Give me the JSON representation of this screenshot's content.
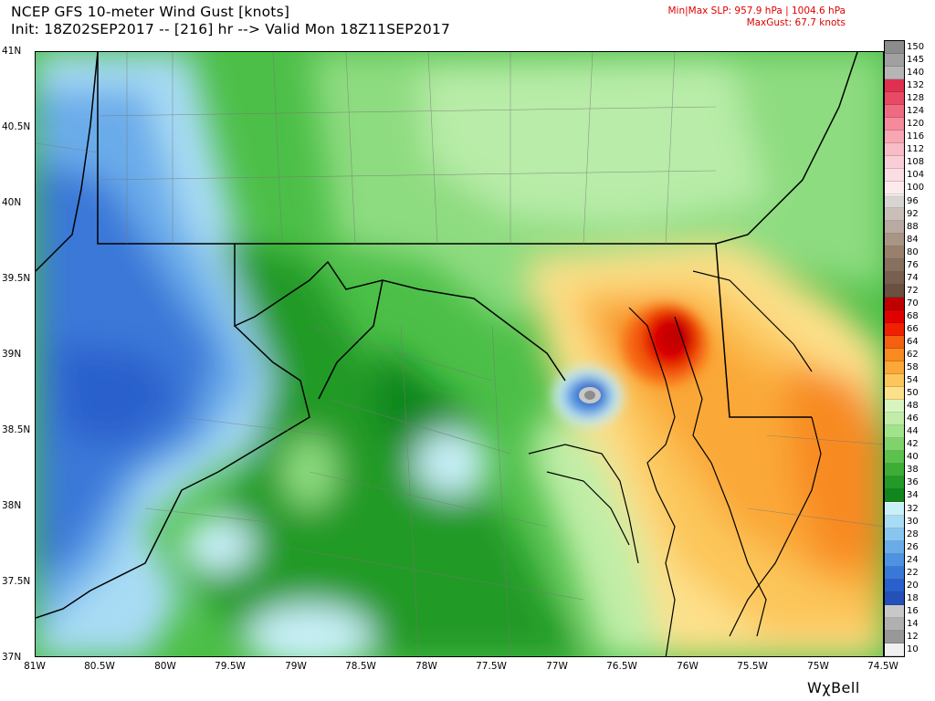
{
  "header": {
    "line1": "NCEP GFS 10-meter Wind Gust [knots]",
    "line2": "Init: 18Z02SEP2017 -- [216] hr --> Valid Mon 18Z11SEP2017"
  },
  "stats": {
    "line1": "Min|Max SLP: 957.9 hPa | 1004.6 hPa",
    "line2": "MaxGust: 67.7 knots"
  },
  "map": {
    "lat_labels": [
      "41N",
      "40.5N",
      "40N",
      "39.5N",
      "39N",
      "38.5N",
      "38N",
      "37.5N",
      "37N"
    ],
    "lon_labels": [
      "81W",
      "80.5W",
      "80W",
      "79.5W",
      "79W",
      "78.5W",
      "78W",
      "77.5W",
      "77W",
      "76.5W",
      "76W",
      "75.5W",
      "75W",
      "74.5W"
    ]
  },
  "colorbar": {
    "levels": [
      "150",
      "145",
      "140",
      "132",
      "128",
      "124",
      "120",
      "116",
      "112",
      "108",
      "104",
      "100",
      "96",
      "92",
      "88",
      "84",
      "80",
      "76",
      "74",
      "72",
      "70",
      "68",
      "66",
      "64",
      "62",
      "58",
      "54",
      "50",
      "48",
      "46",
      "44",
      "42",
      "40",
      "38",
      "36",
      "34",
      "32",
      "30",
      "28",
      "26",
      "24",
      "22",
      "20",
      "18",
      "16",
      "14",
      "12",
      "10"
    ],
    "colors": [
      "#8c8c8c",
      "#a0a0a0",
      "#b5b5b5",
      "#e03050",
      "#e84a66",
      "#ef6b82",
      "#f48a9c",
      "#f7a6b4",
      "#f8bcc6",
      "#f9ced6",
      "#fbdee3",
      "#fdeaee",
      "#d8d4d0",
      "#c8bfb8",
      "#b8aaa0",
      "#a89585",
      "#98806c",
      "#887060",
      "#786050",
      "#6a5040",
      "#c00000",
      "#e00000",
      "#f02000",
      "#f56010",
      "#f88a20",
      "#faa838",
      "#fcc65a",
      "#fde08a",
      "#d8f5c0",
      "#c0eea8",
      "#a0e48a",
      "#7ed46a",
      "#5cc24c",
      "#3ead36",
      "#229a28",
      "#10861c",
      "#c8f0f8",
      "#a8dcf4",
      "#88c6f0",
      "#6aacea",
      "#4e92e2",
      "#3a78d8",
      "#2a60cc",
      "#2450b8",
      "#c8c8c8",
      "#b0b0b0",
      "#989898",
      "#f0f0f0"
    ]
  },
  "brand": "WχBell"
}
